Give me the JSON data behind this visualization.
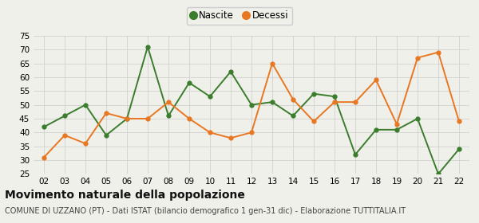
{
  "years": [
    "02",
    "03",
    "04",
    "05",
    "06",
    "07",
    "08",
    "09",
    "10",
    "11",
    "12",
    "13",
    "14",
    "15",
    "16",
    "17",
    "18",
    "19",
    "20",
    "21",
    "22"
  ],
  "nascite": [
    42,
    46,
    50,
    39,
    45,
    71,
    46,
    58,
    53,
    62,
    50,
    51,
    46,
    54,
    53,
    32,
    41,
    41,
    45,
    25,
    34
  ],
  "decessi": [
    31,
    39,
    36,
    47,
    45,
    45,
    51,
    45,
    40,
    38,
    40,
    65,
    52,
    44,
    51,
    51,
    59,
    43,
    67,
    69,
    44
  ],
  "nascite_color": "#3a7d2c",
  "decessi_color": "#e87722",
  "background_color": "#f0f0eb",
  "grid_color": "#cccccc",
  "ylim": [
    25,
    75
  ],
  "yticks": [
    25,
    30,
    35,
    40,
    45,
    50,
    55,
    60,
    65,
    70,
    75
  ],
  "title": "Movimento naturale della popolazione",
  "subtitle": "COMUNE DI UZZANO (PT) - Dati ISTAT (bilancio demografico 1 gen-31 dic) - Elaborazione TUTTITALIA.IT",
  "title_fontsize": 10,
  "subtitle_fontsize": 7,
  "legend_label_nascite": "Nascite",
  "legend_label_decessi": "Decessi"
}
